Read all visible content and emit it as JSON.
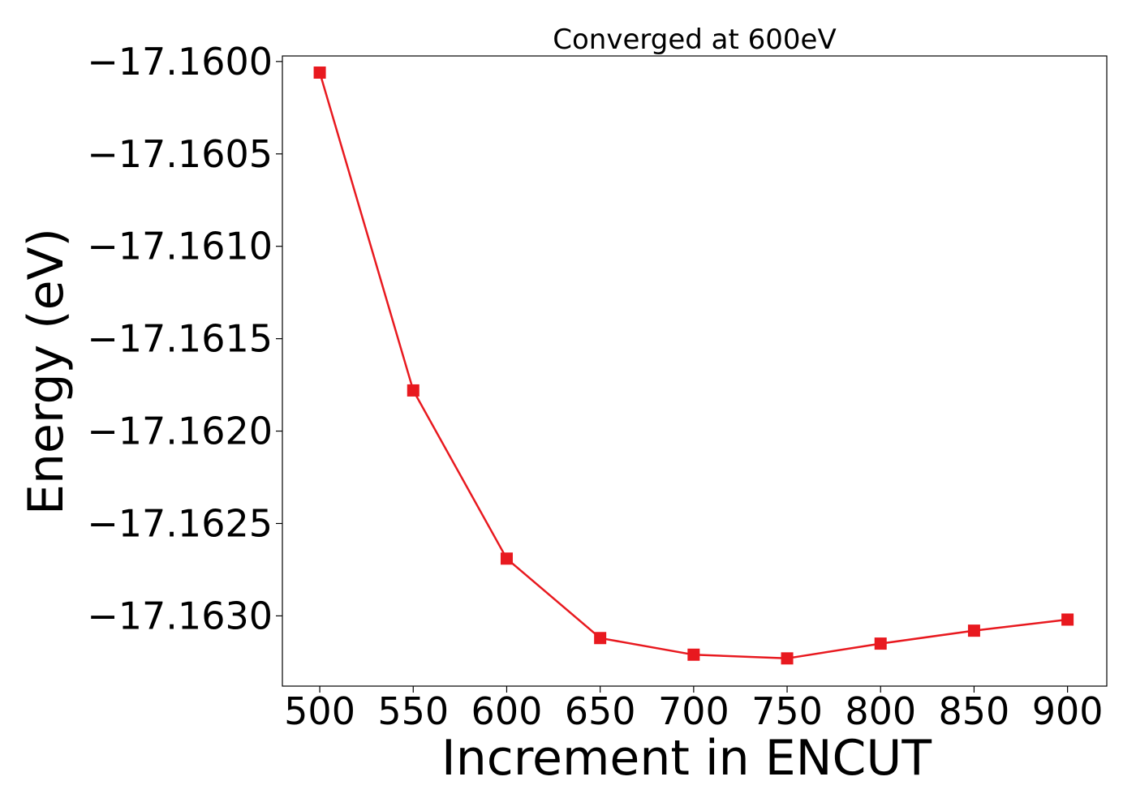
{
  "chart_data": {
    "type": "line",
    "title": "Converged at 600eV",
    "xlabel": "Increment in ENCUT",
    "ylabel": "Energy (eV)",
    "x": [
      500,
      550,
      600,
      650,
      700,
      750,
      800,
      850,
      900
    ],
    "series": [
      {
        "values": [
          -17.16006,
          -17.16178,
          -17.16269,
          -17.16312,
          -17.16321,
          -17.16323,
          -17.16315,
          -17.16308,
          -17.16302
        ],
        "color": "#e8191f",
        "marker": "square"
      }
    ],
    "xlim": [
      480,
      921
    ],
    "ylim": [
      -17.16338,
      -17.15997
    ],
    "xticks": [
      500,
      550,
      600,
      650,
      700,
      750,
      800,
      850,
      900
    ],
    "xtick_labels": [
      "500",
      "550",
      "600",
      "650",
      "700",
      "750",
      "800",
      "850",
      "900"
    ],
    "yticks": [
      -17.16,
      -17.1605,
      -17.161,
      -17.1615,
      -17.162,
      -17.1625,
      -17.163
    ],
    "ytick_labels": [
      "−17.1600",
      "−17.1605",
      "−17.1610",
      "−17.1615",
      "−17.1620",
      "−17.1625",
      "−17.1630"
    ],
    "grid": false,
    "legend": "none"
  }
}
